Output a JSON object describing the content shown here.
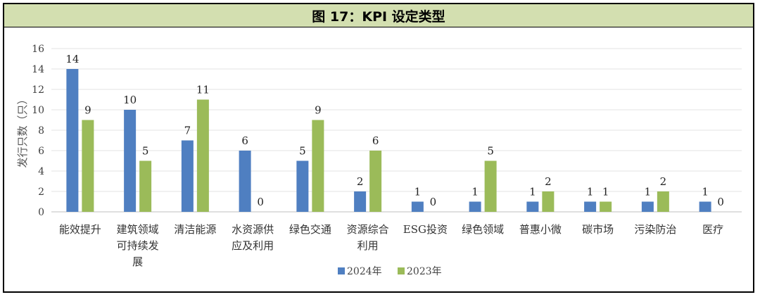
{
  "title": "图 17：KPI 设定类型",
  "chart_data": {
    "type": "bar",
    "title": "图 17：KPI 设定类型",
    "ylabel": "发行只数（只）",
    "xlabel": "",
    "ylim": [
      0,
      16
    ],
    "yticks": [
      0,
      2,
      4,
      6,
      8,
      10,
      12,
      14,
      16
    ],
    "grid": true,
    "legend_position": "bottom",
    "categories": [
      "能效提升",
      "建筑领域可持续发展",
      "清洁能源",
      "水资源供应及利用",
      "绿色交通",
      "资源综合利用",
      "ESG投资",
      "绿色领域",
      "普惠小微",
      "碳市场",
      "污染防治",
      "医疗"
    ],
    "category_lines": [
      [
        "能效提升"
      ],
      [
        "建筑领域",
        "可持续发",
        "展"
      ],
      [
        "清洁能源"
      ],
      [
        "水资源供",
        "应及利用"
      ],
      [
        "绿色交通"
      ],
      [
        "资源综合",
        "利用"
      ],
      [
        "ESG投资"
      ],
      [
        "绿色领域"
      ],
      [
        "普惠小微"
      ],
      [
        "碳市场"
      ],
      [
        "污染防治"
      ],
      [
        "医疗"
      ]
    ],
    "series": [
      {
        "name": "2024年",
        "color": "#4f7fc1",
        "values": [
          14,
          10,
          7,
          6,
          5,
          2,
          1,
          1,
          1,
          1,
          1,
          1
        ]
      },
      {
        "name": "2023年",
        "color": "#9bbb59",
        "values": [
          9,
          5,
          11,
          0,
          9,
          6,
          0,
          5,
          2,
          1,
          2,
          0
        ]
      }
    ]
  }
}
